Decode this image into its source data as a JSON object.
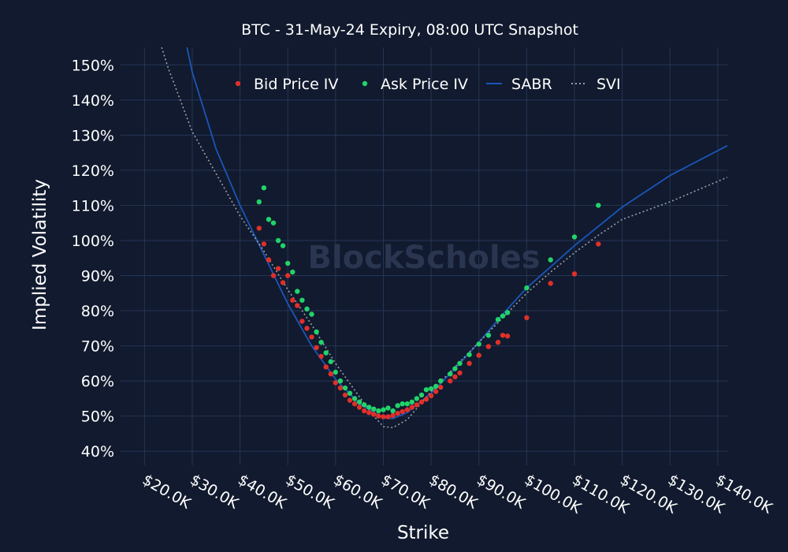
{
  "chart_data": {
    "type": "scatter",
    "title": "BTC - 31-May-24 Expiry, 08:00 UTC Snapshot",
    "xlabel": "Strike",
    "ylabel": "Implied Volatility",
    "xlim": [
      15000,
      142000
    ],
    "ylim": [
      36,
      155
    ],
    "x_ticks": [
      20000,
      30000,
      40000,
      50000,
      60000,
      70000,
      80000,
      90000,
      100000,
      110000,
      120000,
      130000,
      140000
    ],
    "x_tick_labels": [
      "$20.0K",
      "$30.0K",
      "$40.0K",
      "$50.0K",
      "$60.0K",
      "$70.0K",
      "$80.0K",
      "$90.0K",
      "$100.0K",
      "$110.0K",
      "$120.0K",
      "$130.0K",
      "$140.0K"
    ],
    "y_ticks": [
      40,
      50,
      60,
      70,
      80,
      90,
      100,
      110,
      120,
      130,
      140,
      150
    ],
    "y_tick_labels": [
      "40%",
      "50%",
      "60%",
      "70%",
      "80%",
      "90%",
      "100%",
      "110%",
      "120%",
      "130%",
      "140%",
      "150%"
    ],
    "grid": true,
    "legend_position": "top",
    "watermark": "BlockScholes",
    "series": [
      {
        "name": "Bid Price IV",
        "kind": "markers",
        "color": "#e0302a",
        "points": [
          [
            44000,
            103.5
          ],
          [
            45000,
            99
          ],
          [
            46000,
            94.5
          ],
          [
            47000,
            90
          ],
          [
            48000,
            92
          ],
          [
            49000,
            88
          ],
          [
            50000,
            90
          ],
          [
            51000,
            83
          ],
          [
            52000,
            81.5
          ],
          [
            53000,
            77
          ],
          [
            54000,
            75
          ],
          [
            55000,
            72.5
          ],
          [
            56000,
            69.5
          ],
          [
            57000,
            67
          ],
          [
            58000,
            64
          ],
          [
            59000,
            62
          ],
          [
            60000,
            59.5
          ],
          [
            61000,
            58
          ],
          [
            62000,
            56
          ],
          [
            63000,
            54.5
          ],
          [
            64000,
            53.5
          ],
          [
            65000,
            52.5
          ],
          [
            66000,
            51.5
          ],
          [
            67000,
            51
          ],
          [
            68000,
            50.5
          ],
          [
            69000,
            50
          ],
          [
            70000,
            49.8
          ],
          [
            71000,
            49.8
          ],
          [
            72000,
            50.2
          ],
          [
            73000,
            50.8
          ],
          [
            74000,
            51.3
          ],
          [
            75000,
            51.8
          ],
          [
            76000,
            52.5
          ],
          [
            77000,
            53.2
          ],
          [
            78000,
            54
          ],
          [
            79000,
            54.8
          ],
          [
            80000,
            55.8
          ],
          [
            81000,
            57
          ],
          [
            82000,
            58.2
          ],
          [
            84000,
            60
          ],
          [
            85000,
            61.2
          ],
          [
            86000,
            62.3
          ],
          [
            88000,
            65
          ],
          [
            90000,
            67.3
          ],
          [
            92000,
            69.8
          ],
          [
            94000,
            71
          ],
          [
            95000,
            73
          ],
          [
            96000,
            72.8
          ],
          [
            100000,
            78
          ],
          [
            105000,
            87.8
          ],
          [
            110000,
            90.5
          ],
          [
            115000,
            99
          ]
        ]
      },
      {
        "name": "Ask Price IV",
        "kind": "markers",
        "color": "#22d36a",
        "points": [
          [
            44000,
            111
          ],
          [
            45000,
            115
          ],
          [
            46000,
            106
          ],
          [
            47000,
            105
          ],
          [
            48000,
            100
          ],
          [
            49000,
            98.5
          ],
          [
            50000,
            93.5
          ],
          [
            51000,
            91
          ],
          [
            52000,
            85.5
          ],
          [
            53000,
            83
          ],
          [
            54000,
            80.5
          ],
          [
            55000,
            79
          ],
          [
            56000,
            74
          ],
          [
            57000,
            71
          ],
          [
            58000,
            68
          ],
          [
            59000,
            65.5
          ],
          [
            60000,
            62.5
          ],
          [
            61000,
            60
          ],
          [
            62000,
            58
          ],
          [
            63000,
            56.5
          ],
          [
            64000,
            55
          ],
          [
            65000,
            54
          ],
          [
            66000,
            53.2
          ],
          [
            67000,
            52.5
          ],
          [
            68000,
            52
          ],
          [
            69000,
            51.5
          ],
          [
            70000,
            51.8
          ],
          [
            71000,
            52.3
          ],
          [
            72000,
            51.5
          ],
          [
            73000,
            53
          ],
          [
            74000,
            53.5
          ],
          [
            75000,
            53.5
          ],
          [
            76000,
            54
          ],
          [
            77000,
            55
          ],
          [
            78000,
            56
          ],
          [
            79000,
            57.5
          ],
          [
            80000,
            57.8
          ],
          [
            81000,
            58.5
          ],
          [
            82000,
            60
          ],
          [
            84000,
            62
          ],
          [
            85000,
            63.5
          ],
          [
            86000,
            65
          ],
          [
            88000,
            67.5
          ],
          [
            90000,
            70.5
          ],
          [
            92000,
            73
          ],
          [
            94000,
            77.5
          ],
          [
            95000,
            78.5
          ],
          [
            96000,
            79.5
          ],
          [
            100000,
            86.5
          ],
          [
            105000,
            94.5
          ],
          [
            110000,
            101
          ],
          [
            115000,
            110
          ]
        ]
      },
      {
        "name": "SABR",
        "kind": "line",
        "dash": "solid",
        "color": "#1a56b8",
        "points": [
          [
            28900,
            155
          ],
          [
            30000,
            148
          ],
          [
            35000,
            126
          ],
          [
            40000,
            110
          ],
          [
            45000,
            96
          ],
          [
            50000,
            82
          ],
          [
            55000,
            70
          ],
          [
            60000,
            60.5
          ],
          [
            65000,
            53.5
          ],
          [
            70000,
            49.5
          ],
          [
            72000,
            49.3
          ],
          [
            75000,
            51
          ],
          [
            80000,
            56.5
          ],
          [
            85000,
            63.5
          ],
          [
            90000,
            71
          ],
          [
            95000,
            79
          ],
          [
            100000,
            86.5
          ],
          [
            105000,
            92.5
          ],
          [
            110000,
            98.5
          ],
          [
            115000,
            104
          ],
          [
            120000,
            109.5
          ],
          [
            130000,
            118.5
          ],
          [
            142000,
            127
          ]
        ]
      },
      {
        "name": "SVI",
        "kind": "line",
        "dash": "dot",
        "color": "#9aa0a8",
        "points": [
          [
            23600,
            155
          ],
          [
            25000,
            149
          ],
          [
            30000,
            131
          ],
          [
            35000,
            119
          ],
          [
            40000,
            107
          ],
          [
            45000,
            97
          ],
          [
            50000,
            86
          ],
          [
            55000,
            76
          ],
          [
            60000,
            65
          ],
          [
            65000,
            55.5
          ],
          [
            68000,
            50
          ],
          [
            70000,
            47
          ],
          [
            72000,
            46.7
          ],
          [
            75000,
            49
          ],
          [
            80000,
            57
          ],
          [
            85000,
            64
          ],
          [
            90000,
            71
          ],
          [
            95000,
            78
          ],
          [
            100000,
            85
          ],
          [
            105000,
            91
          ],
          [
            110000,
            96.5
          ],
          [
            115000,
            101.5
          ],
          [
            120000,
            106
          ],
          [
            130000,
            111
          ],
          [
            142000,
            118
          ]
        ]
      }
    ]
  }
}
